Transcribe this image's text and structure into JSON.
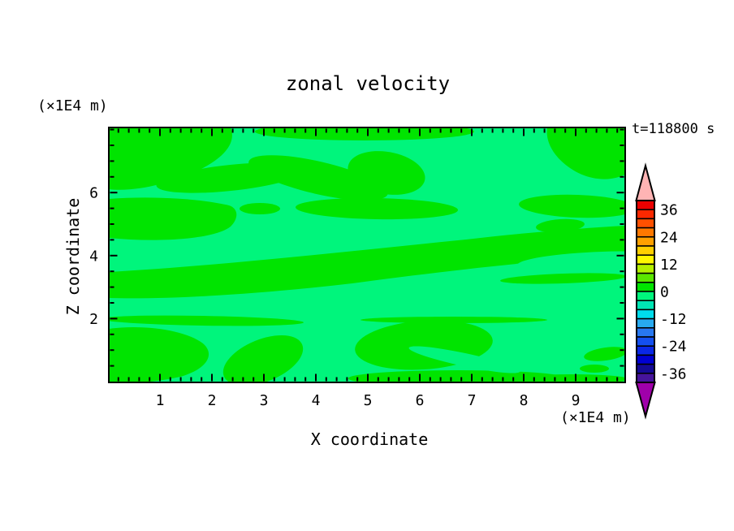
{
  "title": "zonal velocity",
  "timestamp_label": "t=118800 s",
  "axes": {
    "x": {
      "label": "X coordinate",
      "unit_label": "(×1E4 m)",
      "min": 0,
      "max": 9.95,
      "major_tick_labels": [
        "1",
        "2",
        "3",
        "4",
        "5",
        "6",
        "7",
        "8",
        "9"
      ],
      "minor_step": 0.2
    },
    "z": {
      "label": "Z coordinate",
      "unit_label": "(×1E4 m)",
      "min": 0,
      "max": 8.05,
      "major_tick_labels": [
        "2",
        "4",
        "6"
      ],
      "minor_step": 0.5
    }
  },
  "field": {
    "light_color": "#00f57c",
    "dark_color": "#00e400",
    "light_band": "-4..0",
    "dark_band": "0..4"
  },
  "colorbar": {
    "tick_labels": [
      "36",
      "24",
      "12",
      "0",
      "-12",
      "-24",
      "-36"
    ],
    "interval": 4,
    "level_min": -40,
    "level_max": 40,
    "over_color": "#ffb4b4",
    "under_color": "#a000aa",
    "bands_top_to_bottom": [
      {
        "min": 36,
        "max": 40,
        "color": "#ea0000"
      },
      {
        "min": 32,
        "max": 36,
        "color": "#fb2800"
      },
      {
        "min": 28,
        "max": 32,
        "color": "#ff5000"
      },
      {
        "min": 24,
        "max": 28,
        "color": "#ff7800"
      },
      {
        "min": 20,
        "max": 24,
        "color": "#ffa000"
      },
      {
        "min": 16,
        "max": 20,
        "color": "#ffcf00"
      },
      {
        "min": 12,
        "max": 16,
        "color": "#fff700"
      },
      {
        "min": 8,
        "max": 12,
        "color": "#b4f000"
      },
      {
        "min": 4,
        "max": 8,
        "color": "#5ae600"
      },
      {
        "min": 0,
        "max": 4,
        "color": "#00e400"
      },
      {
        "min": -4,
        "max": 0,
        "color": "#00f57c"
      },
      {
        "min": -8,
        "max": -4,
        "color": "#00e6b4"
      },
      {
        "min": -12,
        "max": -8,
        "color": "#00dcec"
      },
      {
        "min": -16,
        "max": -12,
        "color": "#28aaf0"
      },
      {
        "min": -20,
        "max": -16,
        "color": "#2878f0"
      },
      {
        "min": -24,
        "max": -20,
        "color": "#1450f0"
      },
      {
        "min": -28,
        "max": -24,
        "color": "#0a28e6"
      },
      {
        "min": -32,
        "max": -28,
        "color": "#0000d2"
      },
      {
        "min": -36,
        "max": -32,
        "color": "#140a96"
      },
      {
        "min": -40,
        "max": -36,
        "color": "#46149b"
      }
    ]
  },
  "chart_data": {
    "type": "heatmap",
    "subtype": "filled_contour",
    "title": "zonal velocity",
    "xlabel": "X coordinate",
    "ylabel": "Z coordinate",
    "x_unit": "(×1E4 m)",
    "y_unit": "(×1E4 m)",
    "time_annotation": "t=118800 s",
    "xlim": [
      0,
      9.95
    ],
    "ylim": [
      0,
      8.05
    ],
    "x_major_ticks": [
      1,
      2,
      3,
      4,
      5,
      6,
      7,
      8,
      9
    ],
    "y_major_ticks": [
      2,
      4,
      6
    ],
    "grid": false,
    "legend_position": "right-colorbar-with-over-under-arrows",
    "contour_interval": 4,
    "colorbar_tick_values": [
      36,
      24,
      12,
      0,
      -12,
      -24,
      -36
    ],
    "value_range_shown_in_field": [
      -4,
      4
    ],
    "description": "Filled contour field of zonal velocity at t=118800 s. Only two contour bands appear in the plot: light spring-green background is the -4..0 m/s band and darker pure-green elongated, mostly horizontal streaks/blobs are the 0..4 m/s band, stacked in alternating wavy layers."
  }
}
